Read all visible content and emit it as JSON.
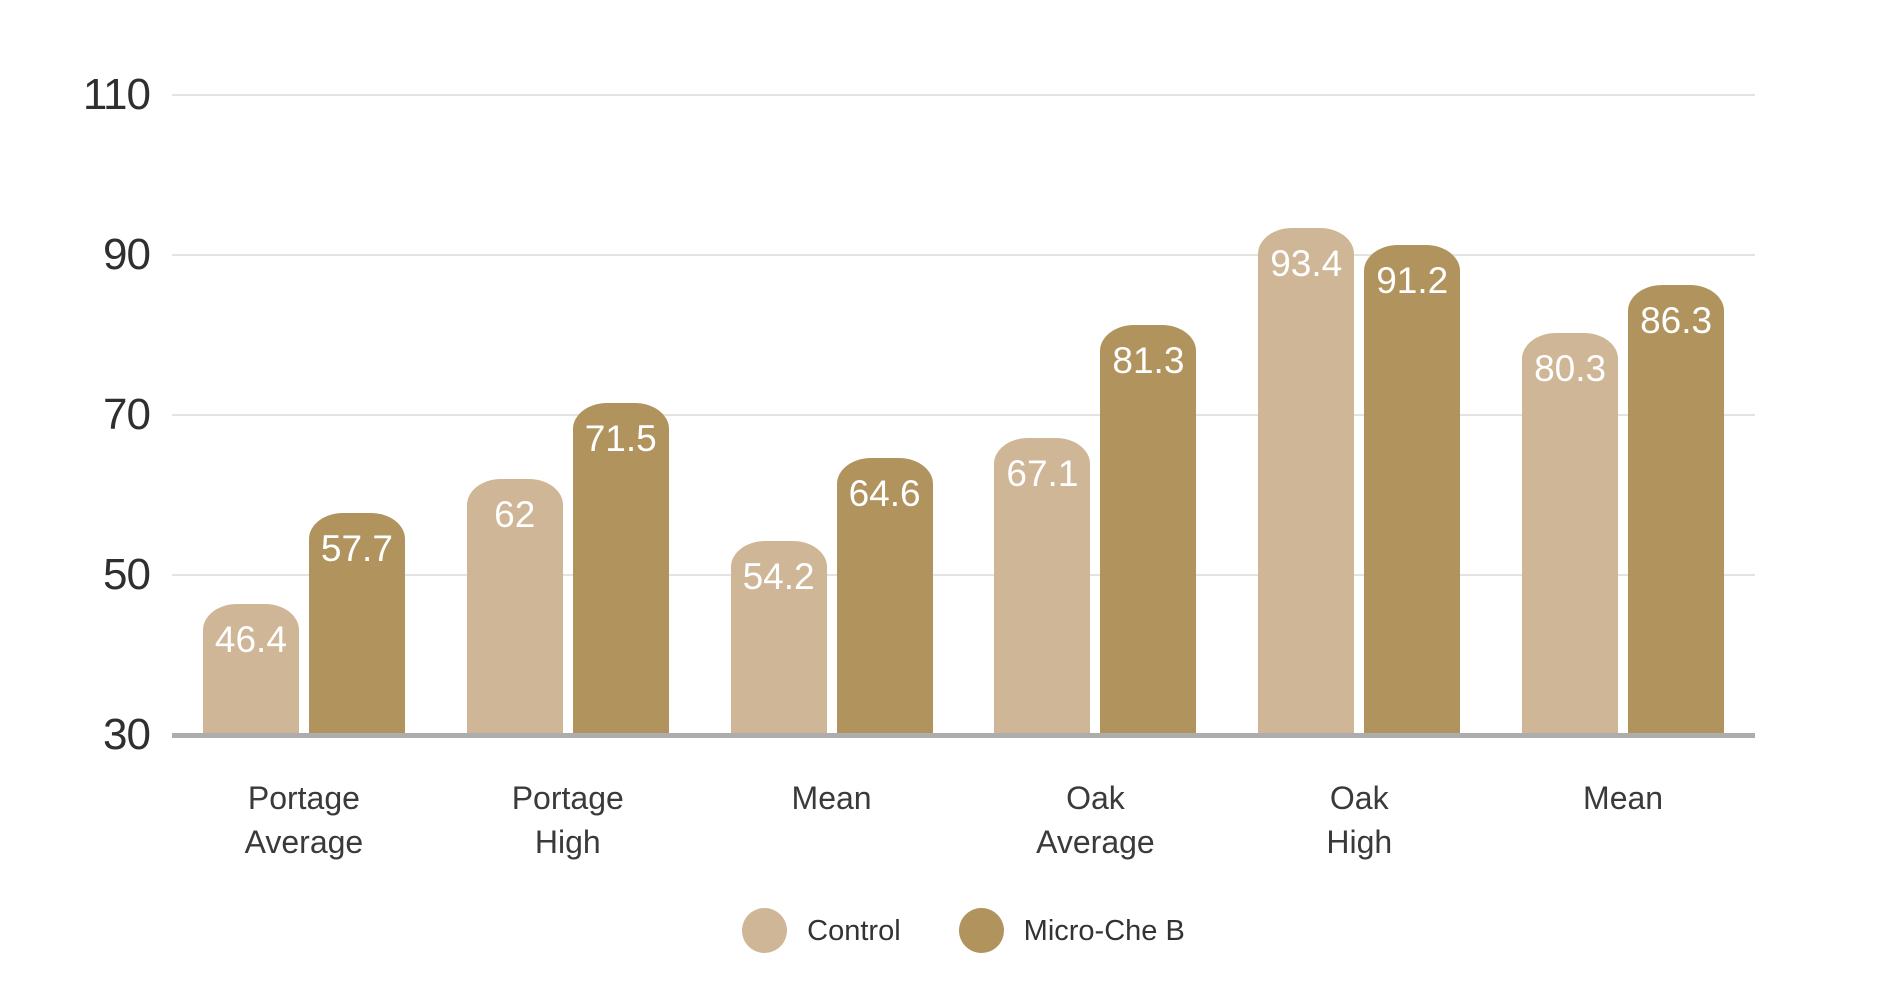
{
  "chart_data": {
    "type": "bar",
    "title": "",
    "xlabel": "",
    "ylabel": "",
    "categories": [
      "Portage Average",
      "Portage High",
      "Mean",
      "Oak Average",
      "Oak High",
      "Mean"
    ],
    "series": [
      {
        "name": "Control",
        "color": "#CEB696",
        "values": [
          46.4,
          62,
          54.2,
          67.1,
          93.4,
          80.3
        ]
      },
      {
        "name": "Micro-Che B",
        "color": "#B1935E",
        "values": [
          57.7,
          71.5,
          64.6,
          81.3,
          91.2,
          86.3
        ]
      }
    ],
    "y_axis": {
      "min": 30,
      "max": 110,
      "ticks": [
        110,
        90,
        70,
        50,
        30
      ]
    },
    "grid": true,
    "legend_position": "bottom",
    "value_labels_shown": true
  },
  "style": {
    "background": "#FFFFFF",
    "gridline_color": "#E5E3E0",
    "axis_line_color": "#ADADAD",
    "tick_text_color": "#2F2F2F",
    "category_text_color": "#3A3A3A",
    "value_label_color": "#FFFFFF",
    "legend_text_color": "#333333"
  }
}
